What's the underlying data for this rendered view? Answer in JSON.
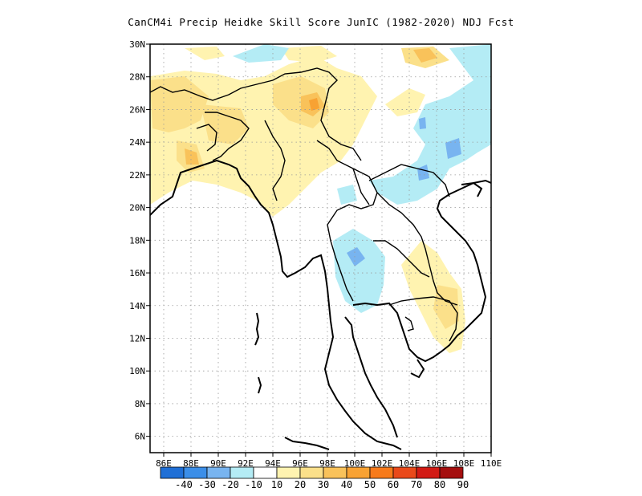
{
  "title": "CanCM4i Precip Heidke Skill Score JunIC (1982-2020) NDJ Fcst",
  "map": {
    "lon_range": [
      85,
      110
    ],
    "lat_range": [
      5,
      30
    ],
    "lon_ticks": [
      "86E",
      "88E",
      "90E",
      "92E",
      "94E",
      "96E",
      "98E",
      "100E",
      "102E",
      "104E",
      "106E",
      "108E",
      "110E"
    ],
    "lat_ticks": [
      "30N",
      "28N",
      "26N",
      "24N",
      "22N",
      "20N",
      "18N",
      "16N",
      "14N",
      "12N",
      "10N",
      "8N",
      "6N"
    ],
    "gridlines": "dotted"
  },
  "colorbar": {
    "labels": [
      "-40",
      "-30",
      "-20",
      "-10",
      "10",
      "20",
      "30",
      "40",
      "50",
      "60",
      "70",
      "80",
      "90"
    ],
    "colors": [
      "#1f6fd6",
      "#3b8ee8",
      "#78b4f0",
      "#b4ecf5",
      "#ffffff",
      "#fff3b0",
      "#fbe08a",
      "#f9c25a",
      "#f8a233",
      "#f77a1a",
      "#e9491a",
      "#d21a14",
      "#a50f0f"
    ]
  },
  "regions": {
    "positive_low": "#fff3b0",
    "positive_mid": "#fbe08a",
    "positive_high": "#f9c25a",
    "positive_peak": "#f8a233",
    "negative_low": "#b4ecf5",
    "negative_mid": "#78b4f0",
    "negative_high": "#3b8ee8"
  }
}
